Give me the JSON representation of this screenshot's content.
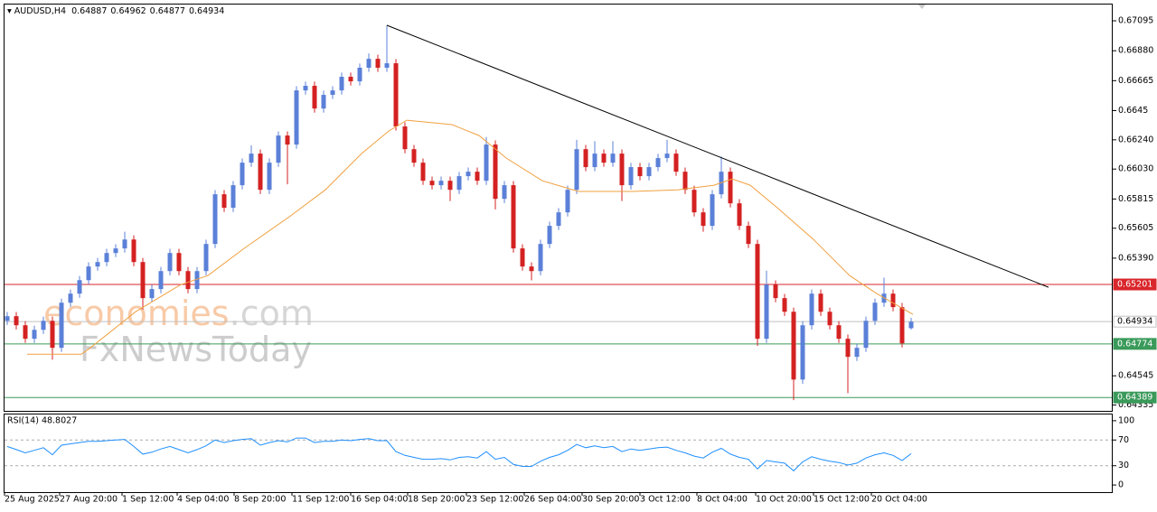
{
  "chart_data": {
    "type": "candlestick",
    "title": "AUDUSD,H4",
    "ylim": [
      0.64293,
      0.67212
    ],
    "yticks": [
      0.67095,
      {
        "value": 0.6688,
        "label": "0.66880"
      },
      0.66665,
      0.6645,
      {
        "value": 0.6624,
        "label": "0.66240"
      },
      {
        "value": 0.6603,
        "label": "0.66030"
      },
      0.65815,
      0.65605,
      {
        "value": 0.6539,
        "label": "0.65390"
      },
      0.64545,
      0.64335
    ],
    "xlim": [
      -0.3,
      122.2
    ],
    "xticks": [
      {
        "value": -0.3,
        "label": "25 Aug 2025"
      },
      {
        "value": 5.8,
        "label": "27 Aug 20:00"
      },
      {
        "value": 12.7,
        "label": "1 Sep 12:00"
      },
      {
        "value": 18.8,
        "label": "4 Sep 04:00"
      },
      {
        "value": 25.1,
        "label": "8 Sep 20:00"
      },
      {
        "value": 31.5,
        "label": "11 Sep 12:00"
      },
      {
        "value": 38,
        "label": "16 Sep 04:00"
      },
      {
        "value": 44.3,
        "label": "18 Sep 20:00"
      },
      {
        "value": 50.8,
        "label": "23 Sep 12:00"
      },
      {
        "value": 57.2,
        "label": "26 Sep 04:00"
      },
      {
        "value": 63.6,
        "label": "30 Sep 20:00"
      },
      {
        "value": 70,
        "label": "3 Oct 12:00"
      },
      {
        "value": 76.3,
        "label": "8 Oct 04:00"
      },
      {
        "value": 82.8,
        "label": "10 Oct 20:00"
      },
      {
        "value": 89.2,
        "label": "15 Oct 12:00"
      },
      {
        "value": 95.6,
        "label": "20 Oct 04:00"
      }
    ],
    "up_color": "#5b80d8",
    "down_color": "#d42121",
    "open": [
      0.6494,
      0.64973,
      0.64908,
      0.64811,
      0.64875,
      0.6494,
      0.64746,
      0.6507,
      0.65135,
      0.65232,
      0.6533,
      0.65362,
      0.65427,
      0.6546,
      0.65524,
      0.65362,
      0.65103,
      0.65168,
      0.65297,
      0.65427,
      0.65297,
      0.65168,
      0.65297,
      0.65492,
      0.65849,
      0.65752,
      0.65914,
      0.66076,
      0.66141,
      0.65881,
      0.66076,
      0.66271,
      0.66206,
      0.66595,
      0.66628,
      0.66465,
      0.66563,
      0.66595,
      0.66693,
      0.6666,
      0.66758,
      0.66822,
      0.66758,
      0.6679,
      0.66336,
      0.66173,
      0.66076,
      0.65946,
      0.65914,
      0.65946,
      0.65881,
      0.65979,
      0.66011,
      0.65946,
      0.66206,
      0.65816,
      0.65914,
      0.6546,
      0.6533,
      0.65297,
      0.65492,
      0.65622,
      0.65719,
      0.65881,
      0.66173,
      0.66044,
      0.66141,
      0.66076,
      0.66141,
      0.65914,
      0.66044,
      0.65979,
      0.66044,
      0.66109,
      0.66141,
      0.66011,
      0.65881,
      0.65719,
      0.65622,
      0.65849,
      0.66011,
      0.65784,
      0.65622,
      0.65492,
      0.64811,
      0.652,
      0.65103,
      0.65005,
      0.64518,
      0.64908,
      0.65135,
      0.65005,
      0.64908,
      0.64811,
      0.64681,
      0.64746,
      0.6494,
      0.6507,
      0.65135,
      0.65038,
      0.64887
    ],
    "high": [
      0.65003,
      0.65003,
      0.64938,
      0.64905,
      0.6497,
      0.6497,
      0.651,
      0.65165,
      0.65262,
      0.6536,
      0.65392,
      0.65457,
      0.6549,
      0.6558,
      0.65554,
      0.65392,
      0.65198,
      0.65327,
      0.65457,
      0.65457,
      0.65327,
      0.65327,
      0.65522,
      0.65879,
      0.65879,
      0.65944,
      0.66106,
      0.662,
      0.66171,
      0.66106,
      0.66301,
      0.66301,
      0.66625,
      0.66658,
      0.66658,
      0.66593,
      0.66625,
      0.66723,
      0.66723,
      0.66788,
      0.6686,
      0.66852,
      0.6706,
      0.6682,
      0.66366,
      0.66203,
      0.66106,
      0.65976,
      0.65976,
      0.65976,
      0.66009,
      0.66041,
      0.66041,
      0.6626,
      0.66236,
      0.65944,
      0.65944,
      0.6549,
      0.6536,
      0.65522,
      0.65652,
      0.65749,
      0.65911,
      0.6624,
      0.66203,
      0.6623,
      0.66171,
      0.6623,
      0.66171,
      0.66074,
      0.66074,
      0.66074,
      0.66139,
      0.6624,
      0.66171,
      0.66041,
      0.65911,
      0.65749,
      0.65879,
      0.6612,
      0.66041,
      0.65814,
      0.65652,
      0.65522,
      0.653,
      0.6523,
      0.65133,
      0.65035,
      0.64938,
      0.65165,
      0.65165,
      0.65035,
      0.64938,
      0.64841,
      0.64776,
      0.6497,
      0.651,
      0.6525,
      0.65165,
      0.65068,
      0.64962
    ],
    "low": [
      0.6491,
      0.64878,
      0.64781,
      0.64781,
      0.64845,
      0.6466,
      0.64716,
      0.6504,
      0.65105,
      0.65202,
      0.653,
      0.65332,
      0.65397,
      0.6543,
      0.65332,
      0.6502,
      0.65073,
      0.65138,
      0.65267,
      0.65267,
      0.65138,
      0.65138,
      0.65267,
      0.65462,
      0.65722,
      0.65722,
      0.65884,
      0.66046,
      0.65851,
      0.65851,
      0.66046,
      0.6592,
      0.66176,
      0.66565,
      0.66435,
      0.66435,
      0.66533,
      0.66565,
      0.6663,
      0.6663,
      0.66728,
      0.66728,
      0.66728,
      0.66306,
      0.66143,
      0.66046,
      0.65916,
      0.65884,
      0.65884,
      0.658,
      0.65851,
      0.65949,
      0.65916,
      0.65916,
      0.6574,
      0.65786,
      0.6543,
      0.653,
      0.6523,
      0.65267,
      0.65462,
      0.65592,
      0.65689,
      0.65851,
      0.66014,
      0.66014,
      0.66046,
      0.66046,
      0.658,
      0.65884,
      0.65949,
      0.65949,
      0.66014,
      0.66079,
      0.65981,
      0.65851,
      0.65689,
      0.6558,
      0.65592,
      0.65819,
      0.65754,
      0.65592,
      0.65462,
      0.6476,
      0.64781,
      0.65073,
      0.64975,
      0.6437,
      0.64488,
      0.64878,
      0.64975,
      0.64878,
      0.64781,
      0.6442,
      0.64651,
      0.64716,
      0.6491,
      0.6504,
      0.65008,
      0.64749,
      0.64877
    ],
    "close": [
      0.64973,
      0.64908,
      0.64811,
      0.64875,
      0.6494,
      0.64746,
      0.6507,
      0.65135,
      0.65232,
      0.6533,
      0.65362,
      0.65427,
      0.6546,
      0.65524,
      0.65362,
      0.65103,
      0.65168,
      0.65297,
      0.65427,
      0.65297,
      0.65168,
      0.65297,
      0.65492,
      0.65849,
      0.65752,
      0.65914,
      0.66076,
      0.66141,
      0.65881,
      0.66076,
      0.66271,
      0.66206,
      0.66595,
      0.66628,
      0.66465,
      0.66563,
      0.66595,
      0.66693,
      0.6666,
      0.66758,
      0.66822,
      0.66758,
      0.6679,
      0.66336,
      0.66173,
      0.66076,
      0.65946,
      0.65914,
      0.65946,
      0.65881,
      0.65979,
      0.66011,
      0.65946,
      0.66206,
      0.65816,
      0.65914,
      0.6546,
      0.6533,
      0.65297,
      0.65492,
      0.65622,
      0.65719,
      0.65881,
      0.66173,
      0.66044,
      0.66141,
      0.66076,
      0.66141,
      0.65914,
      0.66044,
      0.65979,
      0.66044,
      0.66109,
      0.66141,
      0.66011,
      0.65881,
      0.65719,
      0.65622,
      0.65849,
      0.66011,
      0.65784,
      0.65622,
      0.65492,
      0.64811,
      0.652,
      0.65103,
      0.65005,
      0.64518,
      0.64908,
      0.65135,
      0.65005,
      0.64908,
      0.64811,
      0.64681,
      0.64746,
      0.6494,
      0.6507,
      0.65135,
      0.65038,
      0.64778,
      0.64934
    ],
    "moving_average": {
      "color": "#f0a040",
      "x": [
        2.2,
        8.2,
        9.2,
        14.2,
        19.2,
        22.2,
        26.2,
        31.2,
        35.2,
        39.2,
        42.2,
        44.2,
        49.2,
        52.2,
        55.2,
        59.2,
        63.2,
        69.2,
        74.2,
        78.2,
        80.2,
        82.2,
        85.2,
        89.2,
        93.2,
        96.2,
        100.2
      ],
      "values": [
        0.647,
        0.647,
        0.64746,
        0.65005,
        0.652,
        0.65265,
        0.6546,
        0.65687,
        0.65881,
        0.66141,
        0.66303,
        0.66381,
        0.66349,
        0.66271,
        0.66109,
        0.65946,
        0.65869,
        0.65869,
        0.65881,
        0.65914,
        0.65959,
        0.65914,
        0.65752,
        0.65524,
        0.65265,
        0.65135,
        0.64986
      ]
    },
    "trendline": {
      "color": "#000000",
      "x": [
        42,
        115.2
      ],
      "values": [
        0.67063,
        0.65181
      ]
    },
    "levels": [
      {
        "value": 0.65201,
        "color": "#d9262b"
      },
      {
        "value": 0.64934,
        "color": "#c0c0c0"
      },
      {
        "value": 0.64774,
        "color": "#3a9a5a"
      },
      {
        "value": 0.64389,
        "color": "#3a9a5a"
      }
    ],
    "rsi": {
      "label": "RSI(14) 48.8027",
      "color": "#1e8fff",
      "ylim": [
        -11.1,
        109.7
      ],
      "yticks": [
        0,
        30,
        70,
        100
      ],
      "values": [
        60,
        55,
        50,
        54,
        58,
        47,
        62,
        64,
        66,
        68,
        68,
        69,
        70,
        71,
        60,
        48,
        51,
        56,
        60,
        55,
        50,
        55,
        61,
        70,
        66,
        69,
        71,
        72,
        62,
        66,
        69,
        67,
        73,
        73,
        66,
        68,
        68,
        70,
        69,
        71,
        72,
        69,
        69,
        52,
        46,
        43,
        40,
        40,
        41,
        39,
        43,
        44,
        42,
        52,
        40,
        43,
        32,
        29,
        29,
        37,
        43,
        47,
        54,
        63,
        58,
        61,
        58,
        60,
        52,
        56,
        54,
        56,
        58,
        59,
        54,
        50,
        45,
        42,
        51,
        57,
        48,
        43,
        40,
        25,
        38,
        36,
        34,
        22,
        36,
        44,
        40,
        37,
        35,
        31,
        34,
        42,
        47,
        50,
        46,
        38,
        48.8
      ]
    },
    "watermark": [
      "economies",
      ".com",
      "FxNewsToday"
    ]
  }
}
